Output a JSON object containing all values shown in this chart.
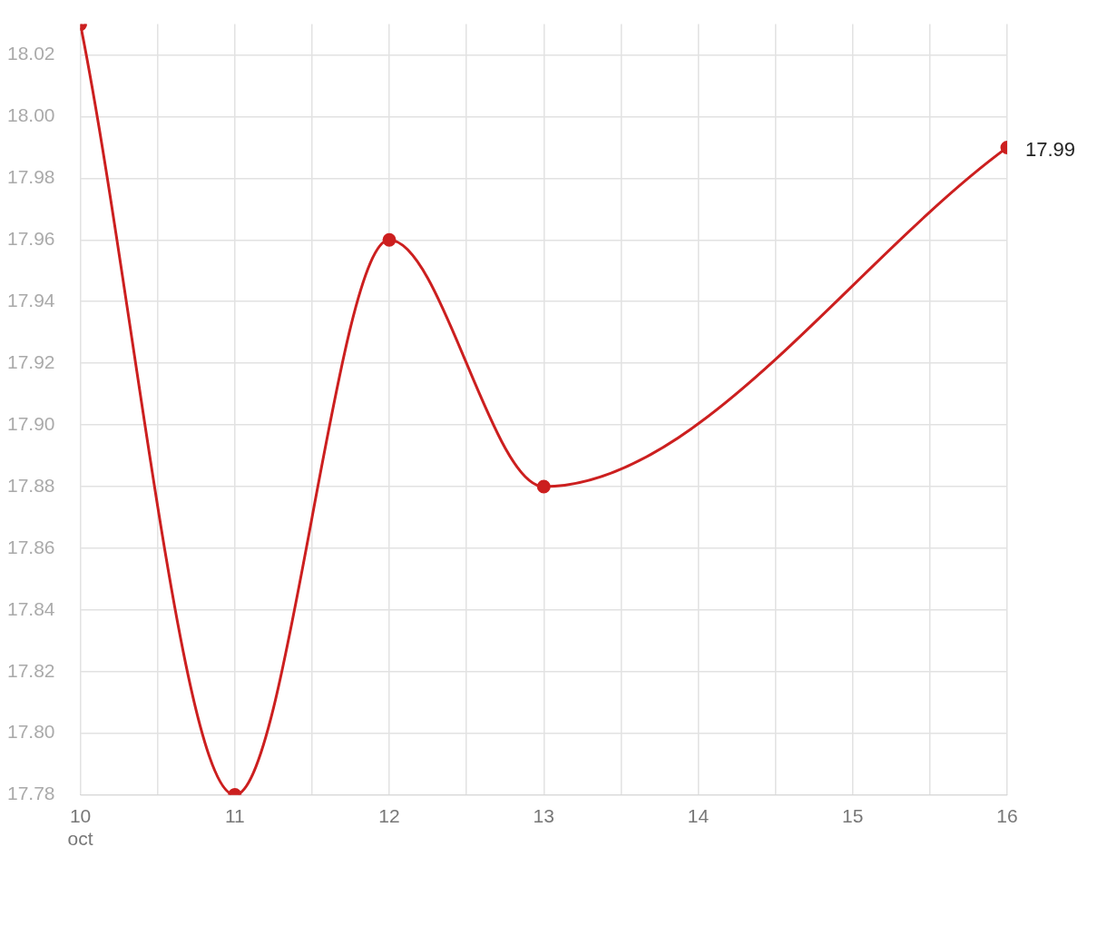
{
  "chart_data": {
    "type": "line",
    "x": [
      "--10-10",
      "--10-11",
      "--10-12",
      "--10-13",
      "--10-16"
    ],
    "series": [
      {
        "color": "#cc1f1f",
        "values": [
          18.03,
          17.78,
          17.96,
          17.88,
          17.99
        ],
        "value_labels": [
          null,
          null,
          null,
          null,
          "17.99"
        ]
      }
    ],
    "xlim": [
      "--10-10",
      "--10-16"
    ],
    "xticks": [
      {
        "value": "--10-10",
        "label": "10\noct"
      },
      {
        "value": "--10-10T12:00",
        "label": null
      },
      {
        "value": "--10-11",
        "label": "11"
      },
      {
        "value": "--10-11T12:00",
        "label": null
      },
      {
        "value": "--10-12",
        "label": "12"
      },
      {
        "value": "--10-12T12:00",
        "label": null
      },
      {
        "value": "--10-13",
        "label": "13"
      },
      {
        "value": "--10-13T12:00",
        "label": null
      },
      {
        "value": "--10-14",
        "label": "14"
      },
      {
        "value": "--10-14T12:00",
        "label": null
      },
      {
        "value": "--10-15",
        "label": "15"
      },
      {
        "value": "--10-15T12:00",
        "label": null
      },
      {
        "value": "--10-16",
        "label": "16"
      }
    ],
    "ylim": [
      17.78,
      18.03
    ],
    "yticks": [
      {
        "value": 17.78,
        "label": "17.78"
      },
      {
        "value": 17.8,
        "label": "17.80"
      },
      {
        "value": 17.82,
        "label": "17.82"
      },
      {
        "value": 17.84,
        "label": "17.84"
      },
      {
        "value": 17.86,
        "label": "17.86"
      },
      {
        "value": 17.88,
        "label": "17.88"
      },
      {
        "value": 17.9,
        "label": "17.90"
      },
      {
        "value": 17.92,
        "label": "17.92"
      },
      {
        "value": 17.94,
        "label": "17.94"
      },
      {
        "value": 17.96,
        "label": "17.96"
      },
      {
        "value": 17.98,
        "label": "17.98"
      },
      {
        "value": 18.0,
        "label": "18.00"
      },
      {
        "value": 18.02,
        "label": "18.02"
      }
    ],
    "grid": true,
    "legend": false,
    "marker": "circle",
    "line_style": "solid"
  }
}
